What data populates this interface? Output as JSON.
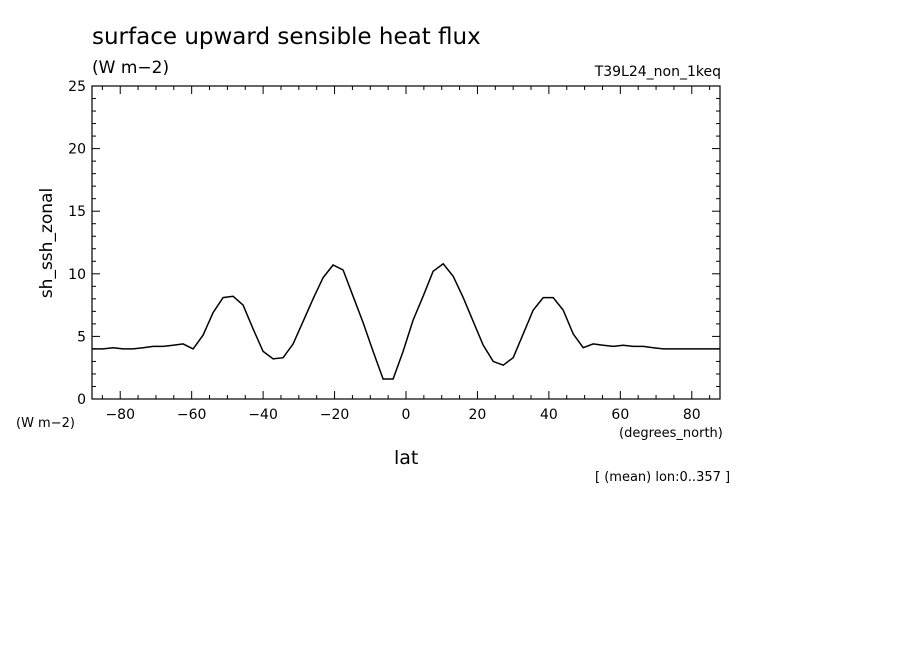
{
  "title": "surface upward sensible heat flux",
  "units": "(W m−2)",
  "run_id": "T39L24_non_1keq",
  "y_unit_label": "(W m−2)",
  "x_unit_label": "(degrees_north)",
  "subset_note": "[ (mean) lon:0..357 ]",
  "chart_data": {
    "type": "line",
    "xlabel": "lat",
    "ylabel": "sh_ssh_zonal",
    "xlim": [
      -87.9,
      87.9
    ],
    "ylim": [
      0,
      25
    ],
    "x_ticks": [
      -80,
      -60,
      -40,
      -20,
      0,
      20,
      40,
      60,
      80
    ],
    "x_tick_labels": [
      "−80",
      "−60",
      "−40",
      "−20",
      "0",
      "20",
      "40",
      "60",
      "80"
    ],
    "y_ticks": [
      0,
      5,
      10,
      15,
      20,
      25
    ],
    "y_tick_labels": [
      "0",
      "5",
      "10",
      "15",
      "20",
      "25"
    ],
    "grid": false,
    "series": [
      {
        "x": [
          -87.9,
          -84.8,
          -82.0,
          -79.2,
          -76.4,
          -73.6,
          -70.8,
          -68.0,
          -65.2,
          -62.4,
          -59.6,
          -56.8,
          -54.0,
          -51.2,
          -48.4,
          -45.6,
          -42.8,
          -40.0,
          -37.2,
          -34.4,
          -31.6,
          -28.8,
          -26.0,
          -23.2,
          -20.4,
          -17.6,
          -14.8,
          -12.0,
          -9.2,
          -6.4,
          -3.6,
          -0.8,
          2.0,
          4.8,
          7.6,
          10.4,
          13.2,
          16.0,
          18.8,
          21.6,
          24.4,
          27.2,
          30.0,
          32.8,
          35.6,
          38.4,
          41.2,
          44.0,
          46.8,
          49.6,
          52.4,
          55.2,
          58.0,
          60.8,
          63.6,
          66.4,
          69.2,
          72.0,
          74.8,
          77.6,
          80.4,
          83.2,
          86.0,
          87.9
        ],
        "y": [
          4.0,
          4.0,
          4.1,
          4.0,
          4.0,
          4.1,
          4.2,
          4.2,
          4.3,
          4.4,
          4.0,
          5.1,
          6.9,
          8.1,
          8.2,
          7.5,
          5.6,
          3.8,
          3.2,
          3.3,
          4.4,
          6.2,
          8.0,
          9.7,
          10.7,
          10.3,
          8.2,
          6.1,
          3.8,
          1.6,
          1.6,
          3.8,
          6.3,
          8.2,
          10.2,
          10.8,
          9.8,
          8.1,
          6.2,
          4.3,
          3.0,
          2.7,
          3.3,
          5.2,
          7.1,
          8.1,
          8.1,
          7.1,
          5.2,
          4.1,
          4.4,
          4.3,
          4.2,
          4.3,
          4.2,
          4.2,
          4.1,
          4.0,
          4.0,
          4.0,
          4.0,
          4.0,
          4.0,
          4.0
        ]
      }
    ]
  }
}
